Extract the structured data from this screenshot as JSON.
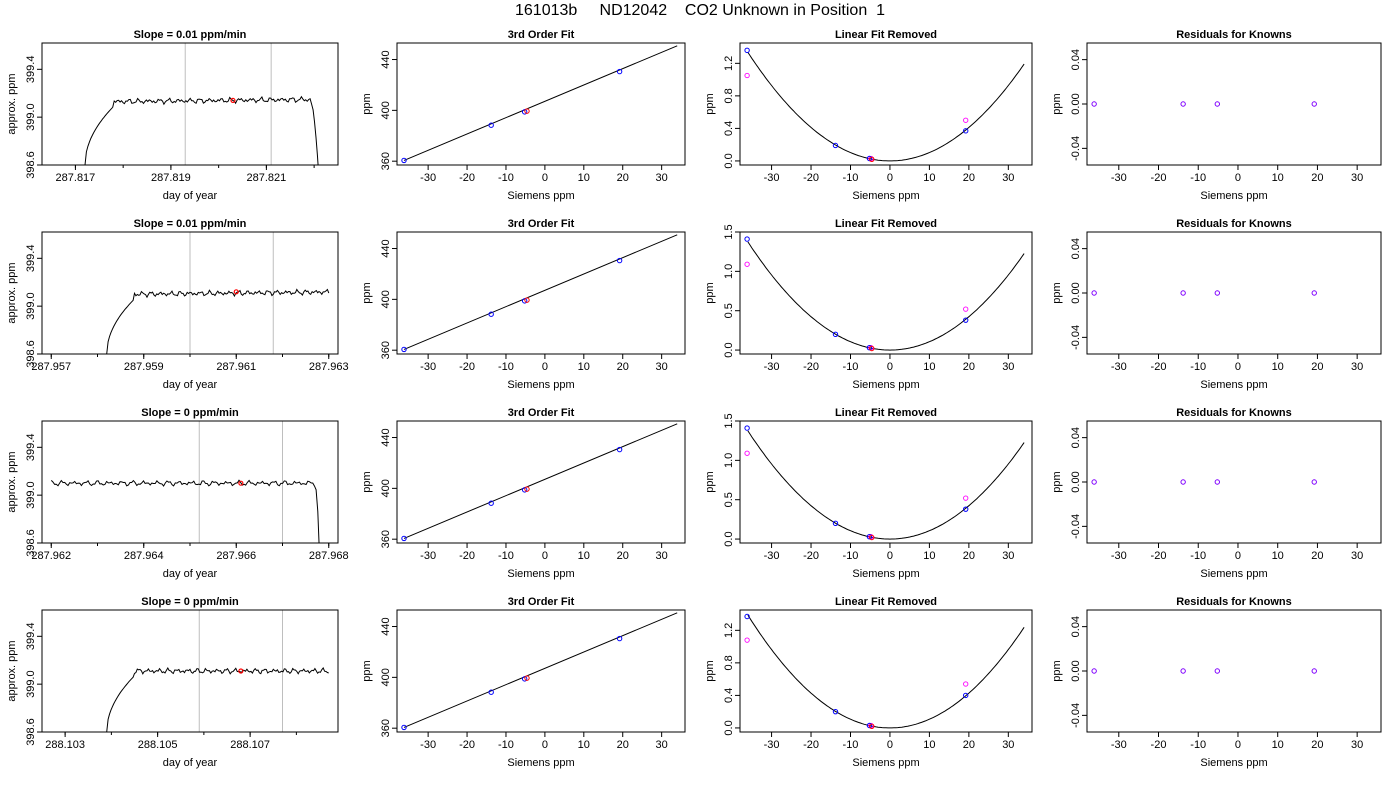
{
  "page_title": "161013b     ND12042    CO2 Unknown in Position  1",
  "colors": {
    "trace": "#000000",
    "window_lines": "#bebebe",
    "unknown_point": "#ff0000",
    "fit_point": "#0000ff",
    "raw_point": "#ff00ff",
    "residual_point": "#8000ff"
  },
  "chart_data": [
    {
      "type": "line",
      "title": "Slope =  0.01  ppm/min",
      "xlabel": "day of year",
      "ylabel": "approx. ppm",
      "xlim": [
        287.8163,
        287.8225
      ],
      "ylim": [
        398.6,
        399.62
      ],
      "xticks": [
        "287.817",
        "287.819",
        "287.821"
      ],
      "yticks": [
        "398.6",
        "399.0",
        "399.4"
      ],
      "grid": false,
      "window_lines_x": [
        287.8193,
        287.8211
      ],
      "profile": {
        "x_start": 287.8172,
        "x_rise_end": 287.8178,
        "x_drop_start": 287.8219,
        "x_end": 287.8221,
        "y_start": 398.6,
        "y_plateau": 399.13,
        "slope_ppm_per_day": 14.4
      },
      "marker": {
        "x": 287.8203,
        "y": 399.14
      }
    },
    {
      "type": "scatter",
      "title": "3rd Order Fit",
      "xlabel": "Siemens ppm",
      "ylabel": "ppm",
      "xlim": [
        -38,
        36
      ],
      "ylim": [
        357,
        453
      ],
      "xticks": [
        "-30",
        "-20",
        "-10",
        "0",
        "10",
        "20",
        "30"
      ],
      "yticks": [
        "360",
        "400",
        "440"
      ],
      "points": [
        {
          "x": -36.2,
          "y": 360.6
        },
        {
          "x": -13.8,
          "y": 388.3
        },
        {
          "x": -5.2,
          "y": 398.8
        },
        {
          "x": 19.2,
          "y": 430.5
        }
      ],
      "unknown": {
        "x": -4.6,
        "y": 399.4
      },
      "fit_line": [
        {
          "x": -36.2,
          "y": 360.6
        },
        {
          "x": 34.0,
          "y": 450.8
        }
      ]
    },
    {
      "type": "scatter",
      "title": "Linear Fit Removed",
      "xlabel": "Siemens ppm",
      "ylabel": "ppm",
      "xlim": [
        -38,
        36
      ],
      "ylim": [
        -0.05,
        1.45
      ],
      "xticks": [
        "-30",
        "-20",
        "-10",
        "0",
        "10",
        "20",
        "30"
      ],
      "yticks": [
        "0.0",
        "0.4",
        "0.8",
        "1.2"
      ],
      "curve_coefficient": 0.00103,
      "curve_x_range": [
        -36,
        34
      ],
      "points": [
        {
          "x": -36.2,
          "y": 1.36
        },
        {
          "x": -13.8,
          "y": 0.19
        },
        {
          "x": -5.2,
          "y": 0.03
        },
        {
          "x": 19.2,
          "y": 0.37
        }
      ],
      "raw_points": [
        {
          "x": -36.2,
          "y": 1.05
        },
        {
          "x": 19.2,
          "y": 0.5
        },
        {
          "x": -4.8,
          "y": 0.03
        }
      ],
      "unknown": {
        "x": -4.6,
        "y": 0.02
      }
    },
    {
      "type": "scatter",
      "title": "Residuals for Knowns",
      "xlabel": "Siemens ppm",
      "ylabel": "ppm",
      "xlim": [
        -38,
        36
      ],
      "ylim": [
        -0.055,
        0.055
      ],
      "xticks": [
        "-30",
        "-20",
        "-10",
        "0",
        "10",
        "20",
        "30"
      ],
      "yticks": [
        "-0.04",
        "0.00",
        "0.04"
      ],
      "points": [
        {
          "x": -36.2,
          "y": 0.0
        },
        {
          "x": -13.8,
          "y": 0.0
        },
        {
          "x": -5.2,
          "y": 0.0
        },
        {
          "x": 19.2,
          "y": 0.0
        }
      ]
    },
    {
      "type": "line",
      "title": "Slope =  0.01  ppm/min",
      "xlabel": "day of year",
      "ylabel": "approx. ppm",
      "xlim": [
        287.9568,
        287.9632
      ],
      "ylim": [
        398.6,
        399.62
      ],
      "xticks": [
        "287.957",
        "287.959",
        "287.961",
        "287.963"
      ],
      "yticks": [
        "398.6",
        "399.0",
        "399.4"
      ],
      "grid": false,
      "window_lines_x": [
        287.96,
        287.9618
      ],
      "profile": {
        "x_start": 287.9582,
        "x_rise_end": 287.9588,
        "x_drop_start": null,
        "x_end": 287.963,
        "y_start": 398.6,
        "y_plateau": 399.1,
        "slope_ppm_per_day": 14.4
      },
      "marker": {
        "x": 287.961,
        "y": 399.12
      }
    },
    {
      "type": "scatter",
      "title": "3rd Order Fit",
      "xlabel": "Siemens ppm",
      "ylabel": "ppm",
      "xlim": [
        -38,
        36
      ],
      "ylim": [
        357,
        453
      ],
      "xticks": [
        "-30",
        "-20",
        "-10",
        "0",
        "10",
        "20",
        "30"
      ],
      "yticks": [
        "360",
        "400",
        "440"
      ],
      "points": [
        {
          "x": -36.2,
          "y": 360.6
        },
        {
          "x": -13.8,
          "y": 388.3
        },
        {
          "x": -5.2,
          "y": 398.8
        },
        {
          "x": 19.2,
          "y": 430.5
        }
      ],
      "unknown": {
        "x": -4.6,
        "y": 399.4
      },
      "fit_line": [
        {
          "x": -36.2,
          "y": 360.6
        },
        {
          "x": 34.0,
          "y": 450.8
        }
      ]
    },
    {
      "type": "scatter",
      "title": "Linear Fit Removed",
      "xlabel": "Siemens ppm",
      "ylabel": "ppm",
      "xlim": [
        -38,
        36
      ],
      "ylim": [
        -0.05,
        1.5
      ],
      "xticks": [
        "-30",
        "-20",
        "-10",
        "0",
        "10",
        "20",
        "30"
      ],
      "yticks": [
        "0.0",
        "0.5",
        "1.0",
        "1.5"
      ],
      "curve_coefficient": 0.00106,
      "curve_x_range": [
        -36,
        34
      ],
      "points": [
        {
          "x": -36.2,
          "y": 1.41
        },
        {
          "x": -13.8,
          "y": 0.2
        },
        {
          "x": -5.2,
          "y": 0.03
        },
        {
          "x": 19.2,
          "y": 0.38
        }
      ],
      "raw_points": [
        {
          "x": -36.2,
          "y": 1.09
        },
        {
          "x": 19.2,
          "y": 0.52
        },
        {
          "x": -4.8,
          "y": 0.03
        }
      ],
      "unknown": {
        "x": -4.6,
        "y": 0.02
      }
    },
    {
      "type": "scatter",
      "title": "Residuals for Knowns",
      "xlabel": "Siemens ppm",
      "ylabel": "ppm",
      "xlim": [
        -38,
        36
      ],
      "ylim": [
        -0.055,
        0.055
      ],
      "xticks": [
        "-30",
        "-20",
        "-10",
        "0",
        "10",
        "20",
        "30"
      ],
      "yticks": [
        "-0.04",
        "0.00",
        "0.04"
      ],
      "points": [
        {
          "x": -36.2,
          "y": 0.0
        },
        {
          "x": -13.8,
          "y": 0.0
        },
        {
          "x": -5.2,
          "y": 0.0
        },
        {
          "x": 19.2,
          "y": 0.0
        }
      ]
    },
    {
      "type": "line",
      "title": "Slope =  0  ppm/min",
      "xlabel": "day of year",
      "ylabel": "approx. ppm",
      "xlim": [
        287.9618,
        287.9682
      ],
      "ylim": [
        398.6,
        399.62
      ],
      "xticks": [
        "287.962",
        "287.964",
        "287.966",
        "287.968"
      ],
      "yticks": [
        "398.6",
        "399.0",
        "399.4"
      ],
      "grid": false,
      "window_lines_x": [
        287.9652,
        287.967
      ],
      "profile": {
        "x_start": 287.962,
        "x_rise_end": null,
        "x_drop_start": 287.9677,
        "x_end": 287.9678,
        "y_start": 399.1,
        "y_plateau": 399.1,
        "slope_ppm_per_day": 0
      },
      "marker": {
        "x": 287.9661,
        "y": 399.1
      }
    },
    {
      "type": "scatter",
      "title": "3rd Order Fit",
      "xlabel": "Siemens ppm",
      "ylabel": "ppm",
      "xlim": [
        -38,
        36
      ],
      "ylim": [
        357,
        453
      ],
      "xticks": [
        "-30",
        "-20",
        "-10",
        "0",
        "10",
        "20",
        "30"
      ],
      "yticks": [
        "360",
        "400",
        "440"
      ],
      "points": [
        {
          "x": -36.2,
          "y": 360.6
        },
        {
          "x": -13.8,
          "y": 388.3
        },
        {
          "x": -5.2,
          "y": 398.8
        },
        {
          "x": 19.2,
          "y": 430.5
        }
      ],
      "unknown": {
        "x": -4.6,
        "y": 399.4
      },
      "fit_line": [
        {
          "x": -36.2,
          "y": 360.6
        },
        {
          "x": 34.0,
          "y": 450.8
        }
      ]
    },
    {
      "type": "scatter",
      "title": "Linear Fit Removed",
      "xlabel": "Siemens ppm",
      "ylabel": "ppm",
      "xlim": [
        -38,
        36
      ],
      "ylim": [
        -0.05,
        1.5
      ],
      "xticks": [
        "-30",
        "-20",
        "-10",
        "0",
        "10",
        "20",
        "30"
      ],
      "yticks": [
        "0.0",
        "0.5",
        "1.0",
        "1.5"
      ],
      "curve_coefficient": 0.00106,
      "curve_x_range": [
        -36,
        34
      ],
      "points": [
        {
          "x": -36.2,
          "y": 1.41
        },
        {
          "x": -13.8,
          "y": 0.2
        },
        {
          "x": -5.2,
          "y": 0.03
        },
        {
          "x": 19.2,
          "y": 0.38
        }
      ],
      "raw_points": [
        {
          "x": -36.2,
          "y": 1.09
        },
        {
          "x": 19.2,
          "y": 0.52
        },
        {
          "x": -4.8,
          "y": 0.03
        }
      ],
      "unknown": {
        "x": -4.6,
        "y": 0.02
      }
    },
    {
      "type": "scatter",
      "title": "Residuals for Knowns",
      "xlabel": "Siemens ppm",
      "ylabel": "ppm",
      "xlim": [
        -38,
        36
      ],
      "ylim": [
        -0.055,
        0.055
      ],
      "xticks": [
        "-30",
        "-20",
        "-10",
        "0",
        "10",
        "20",
        "30"
      ],
      "yticks": [
        "-0.04",
        "0.00",
        "0.04"
      ],
      "points": [
        {
          "x": -36.2,
          "y": 0.0
        },
        {
          "x": -13.8,
          "y": 0.0
        },
        {
          "x": -5.2,
          "y": 0.0
        },
        {
          "x": 19.2,
          "y": 0.0
        }
      ]
    },
    {
      "type": "line",
      "title": "Slope =  0  ppm/min",
      "xlabel": "day of year",
      "ylabel": "approx. ppm",
      "xlim": [
        288.1025,
        288.1089
      ],
      "ylim": [
        398.6,
        399.62
      ],
      "xticks": [
        "288.103",
        "288.105",
        "288.107"
      ],
      "yticks": [
        "398.6",
        "399.0",
        "399.4"
      ],
      "grid": false,
      "window_lines_x": [
        288.1059,
        288.1077
      ],
      "profile": {
        "x_start": 288.1039,
        "x_rise_end": 288.1045,
        "x_drop_start": null,
        "x_end": 288.1087,
        "y_start": 398.6,
        "y_plateau": 399.11,
        "slope_ppm_per_day": 0
      },
      "marker": {
        "x": 288.1068,
        "y": 399.11
      }
    },
    {
      "type": "scatter",
      "title": "3rd Order Fit",
      "xlabel": "Siemens ppm",
      "ylabel": "ppm",
      "xlim": [
        -38,
        36
      ],
      "ylim": [
        357,
        453
      ],
      "xticks": [
        "-30",
        "-20",
        "-10",
        "0",
        "10",
        "20",
        "30"
      ],
      "yticks": [
        "360",
        "400",
        "440"
      ],
      "points": [
        {
          "x": -36.2,
          "y": 360.6
        },
        {
          "x": -13.8,
          "y": 388.3
        },
        {
          "x": -5.2,
          "y": 398.8
        },
        {
          "x": 19.2,
          "y": 430.5
        }
      ],
      "unknown": {
        "x": -4.6,
        "y": 399.4
      },
      "fit_line": [
        {
          "x": -36.2,
          "y": 360.6
        },
        {
          "x": 34.0,
          "y": 450.8
        }
      ]
    },
    {
      "type": "scatter",
      "title": "Linear Fit Removed",
      "xlabel": "Siemens ppm",
      "ylabel": "ppm",
      "xlim": [
        -38,
        36
      ],
      "ylim": [
        -0.05,
        1.45
      ],
      "xticks": [
        "-30",
        "-20",
        "-10",
        "0",
        "10",
        "20",
        "30"
      ],
      "yticks": [
        "0.0",
        "0.4",
        "0.8",
        "1.2"
      ],
      "curve_coefficient": 0.00107,
      "curve_x_range": [
        -36,
        34
      ],
      "points": [
        {
          "x": -36.2,
          "y": 1.37
        },
        {
          "x": -13.8,
          "y": 0.2
        },
        {
          "x": -5.2,
          "y": 0.03
        },
        {
          "x": 19.2,
          "y": 0.4
        }
      ],
      "raw_points": [
        {
          "x": -36.2,
          "y": 1.08
        },
        {
          "x": 19.2,
          "y": 0.54
        },
        {
          "x": -4.8,
          "y": 0.03
        }
      ],
      "unknown": {
        "x": -4.6,
        "y": 0.02
      }
    },
    {
      "type": "scatter",
      "title": "Residuals for Knowns",
      "xlabel": "Siemens ppm",
      "ylabel": "ppm",
      "xlim": [
        -38,
        36
      ],
      "ylim": [
        -0.055,
        0.055
      ],
      "xticks": [
        "-30",
        "-20",
        "-10",
        "0",
        "10",
        "20",
        "30"
      ],
      "yticks": [
        "-0.04",
        "0.00",
        "0.04"
      ],
      "points": [
        {
          "x": -36.2,
          "y": 0.0
        },
        {
          "x": -13.8,
          "y": 0.0
        },
        {
          "x": -5.2,
          "y": 0.0
        },
        {
          "x": 19.2,
          "y": 0.0
        }
      ]
    }
  ]
}
